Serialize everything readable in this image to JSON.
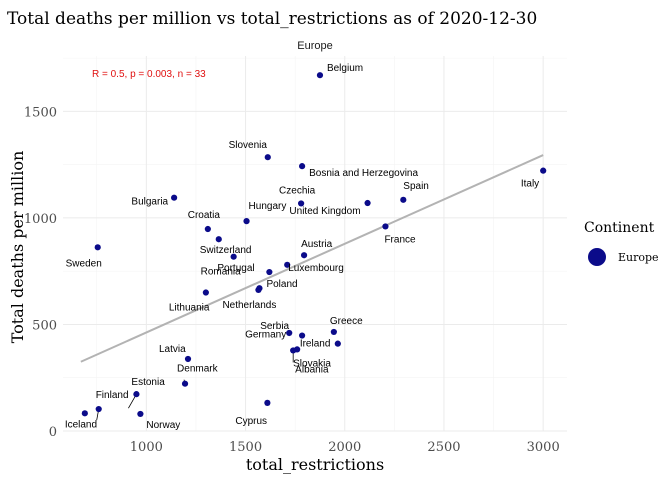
{
  "chart_data": {
    "type": "scatter",
    "title": "Total deaths per million vs total_restrictions as of 2020-12-30",
    "facet": "Europe",
    "xlabel": "total_restrictions",
    "ylabel": "Total deaths per million",
    "xlim": [
      580,
      3120
    ],
    "ylim": [
      0,
      1760
    ],
    "xticks": [
      1000,
      1500,
      2000,
      2500,
      3000
    ],
    "yticks": [
      0,
      500,
      1000,
      1500
    ],
    "grid": true,
    "annotation": "R = 0.5, p = 0.003, n = 33",
    "annotation_color": "#e01010",
    "point_color": "#0b0b8a",
    "trend_color": "#b3b3b3",
    "trend": {
      "x": [
        670,
        3000
      ],
      "y": [
        325,
        1295
      ]
    },
    "legend": {
      "title": "Continent",
      "entries": [
        "Europe"
      ],
      "position": "right"
    },
    "points": [
      {
        "label": "Belgium",
        "x": 1875,
        "y": 1670
      },
      {
        "label": "Slovenia",
        "x": 1612,
        "y": 1285
      },
      {
        "label": "Bosnia and Herzegovina",
        "x": 1785,
        "y": 1243
      },
      {
        "label": "Italy",
        "x": 3000,
        "y": 1222
      },
      {
        "label": "Bulgaria",
        "x": 1140,
        "y": 1095
      },
      {
        "label": "Spain",
        "x": 2295,
        "y": 1085
      },
      {
        "label": "United Kingdom",
        "x": 2115,
        "y": 1070
      },
      {
        "label": "Czechia",
        "x": 1780,
        "y": 1068
      },
      {
        "label": "Hungary",
        "x": 1505,
        "y": 985
      },
      {
        "label": "Croatia",
        "x": 1310,
        "y": 948
      },
      {
        "label": "France",
        "x": 2205,
        "y": 960
      },
      {
        "label": "Switzerland",
        "x": 1365,
        "y": 900
      },
      {
        "label": "Sweden",
        "x": 755,
        "y": 862
      },
      {
        "label": "Austria",
        "x": 1795,
        "y": 825
      },
      {
        "label": "Romania",
        "x": 1440,
        "y": 818
      },
      {
        "label": "Luxembourg",
        "x": 1710,
        "y": 780
      },
      {
        "label": "Portugal",
        "x": 1620,
        "y": 746
      },
      {
        "label": "Poland",
        "x": 1570,
        "y": 670
      },
      {
        "label": "Netherlands",
        "x": 1565,
        "y": 662
      },
      {
        "label": "Lithuania",
        "x": 1300,
        "y": 650
      },
      {
        "label": "Serbia",
        "x": 1720,
        "y": 460
      },
      {
        "label": "Greece",
        "x": 1945,
        "y": 465
      },
      {
        "label": "Germany",
        "x": 1785,
        "y": 448
      },
      {
        "label": "Ireland",
        "x": 1965,
        "y": 410
      },
      {
        "label": "Slovakia",
        "x": 1760,
        "y": 383
      },
      {
        "label": "Albania",
        "x": 1740,
        "y": 378
      },
      {
        "label": "Latvia",
        "x": 1210,
        "y": 338
      },
      {
        "label": "Denmark",
        "x": 1195,
        "y": 222
      },
      {
        "label": "Estonia",
        "x": 950,
        "y": 173
      },
      {
        "label": "Cyprus",
        "x": 1610,
        "y": 132
      },
      {
        "label": "Finland",
        "x": 760,
        "y": 103
      },
      {
        "label": "Iceland",
        "x": 690,
        "y": 83
      },
      {
        "label": "Norway",
        "x": 970,
        "y": 80
      }
    ]
  }
}
